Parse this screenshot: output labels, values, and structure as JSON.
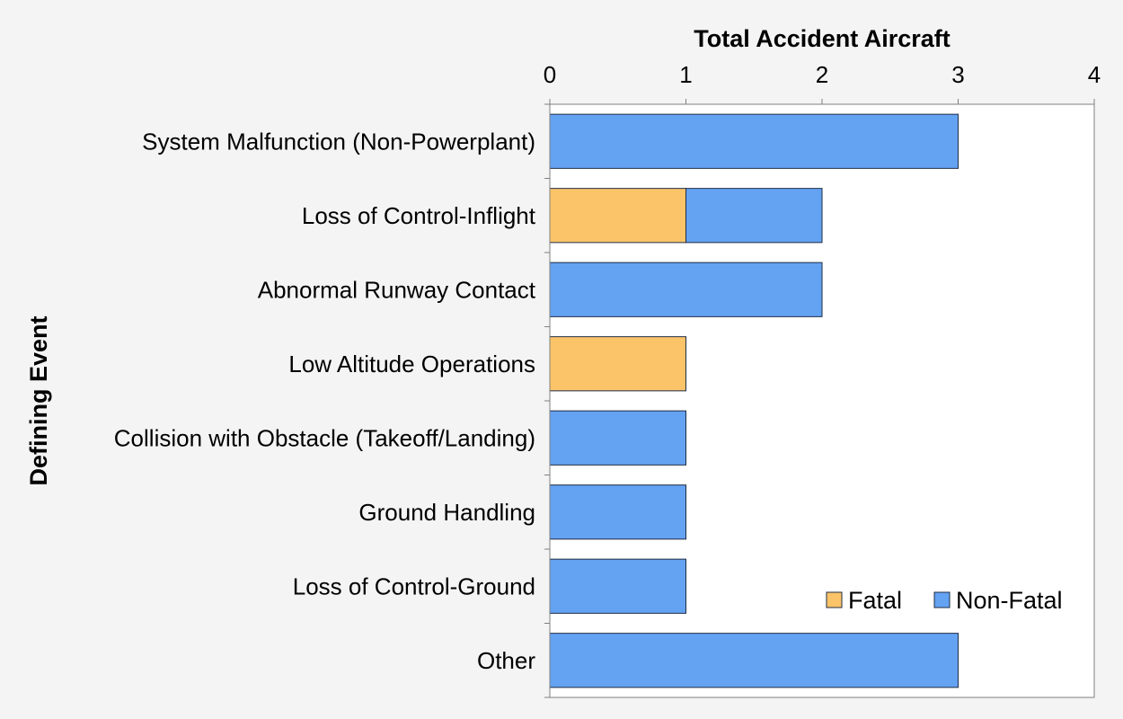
{
  "chart_data": {
    "type": "bar",
    "orientation": "horizontal",
    "stacked": true,
    "title": "",
    "xlabel": "Total Accident Aircraft",
    "ylabel": "Defining Event",
    "xlim": [
      0,
      4
    ],
    "x_ticks": [
      "0",
      "1",
      "2",
      "3",
      "4"
    ],
    "x_axis_position": "top",
    "grid": false,
    "legend_position": "bottom-right",
    "categories": [
      "System Malfunction (Non-Powerplant)",
      "Loss of Control-Inflight",
      "Abnormal Runway Contact",
      "Low Altitude Operations",
      "Collision with Obstacle (Takeoff/Landing)",
      "Ground Handling",
      "Loss of Control-Ground",
      "Other"
    ],
    "series": [
      {
        "name": "Fatal",
        "color": "#fcc469",
        "values": [
          0,
          1,
          0,
          1,
          0,
          0,
          0,
          0
        ]
      },
      {
        "name": "Non-Fatal",
        "color": "#64a2f2",
        "values": [
          3,
          1,
          2,
          0,
          1,
          1,
          1,
          3
        ]
      }
    ]
  }
}
